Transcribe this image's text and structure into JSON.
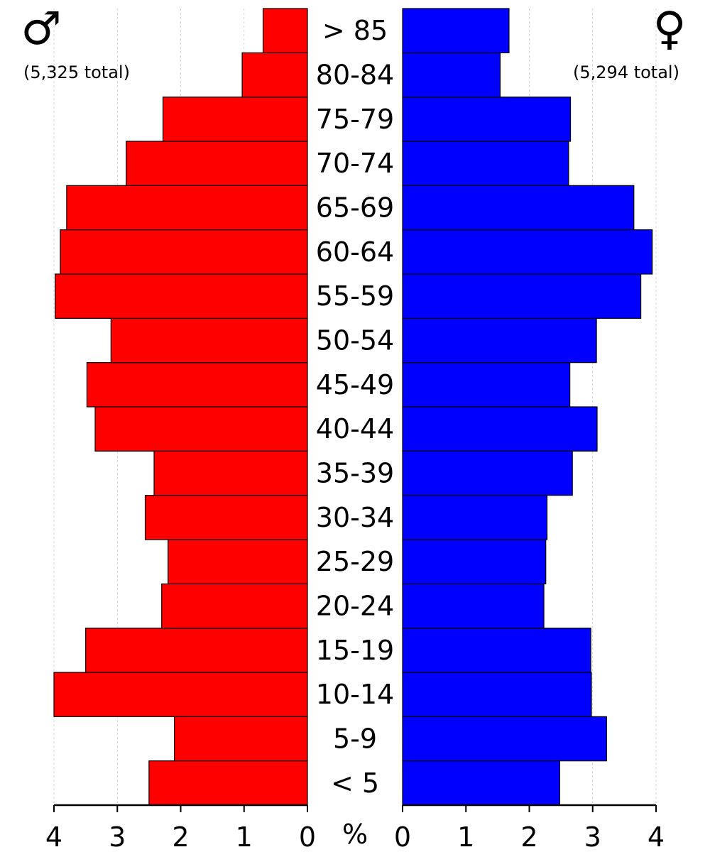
{
  "chart_data": {
    "type": "bar",
    "orientation": "horizontal-population-pyramid",
    "categories": [
      "< 5",
      "5-9",
      "10-14",
      "15-19",
      "20-24",
      "25-29",
      "30-34",
      "35-39",
      "40-44",
      "45-49",
      "50-54",
      "55-59",
      "60-64",
      "65-69",
      "70-74",
      "75-79",
      "80-84",
      "> 85"
    ],
    "series": [
      {
        "name": "male",
        "symbol": "♂",
        "total_label": "(5,325 total)",
        "color": "#ff0000",
        "values": [
          2.5,
          2.1,
          4.0,
          3.5,
          2.3,
          2.2,
          2.56,
          2.42,
          3.35,
          3.48,
          3.1,
          3.98,
          3.9,
          3.8,
          2.86,
          2.28,
          1.03,
          0.7
        ]
      },
      {
        "name": "female",
        "symbol": "♀",
        "total_label": "(5,294 total)",
        "color": "#0000ff",
        "values": [
          2.48,
          3.22,
          2.98,
          2.97,
          2.23,
          2.26,
          2.28,
          2.68,
          3.07,
          2.64,
          3.06,
          3.76,
          3.94,
          3.65,
          2.62,
          2.65,
          1.54,
          1.68
        ]
      }
    ],
    "x_ticks": [
      "4",
      "3",
      "2",
      "1",
      "0",
      "0",
      "1",
      "2",
      "3",
      "4"
    ],
    "xlabel": "%",
    "xlim": [
      0,
      4
    ],
    "grid": "vertical dashed",
    "bar_edge_color": "#000000",
    "grid_color": "#cccccc"
  }
}
